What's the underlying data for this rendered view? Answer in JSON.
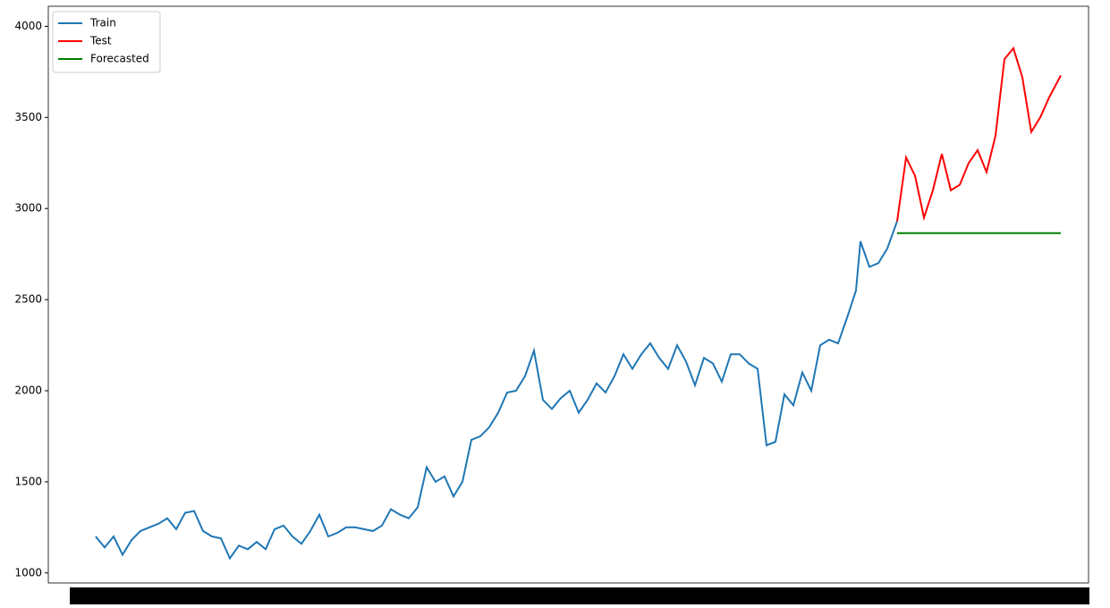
{
  "chart_data": {
    "type": "line",
    "series": [
      {
        "name": "Train",
        "color": "#1f77b4",
        "x": [
          0,
          10,
          20,
          30,
          40,
          50,
          60,
          70,
          80,
          90,
          100,
          110,
          120,
          130,
          140,
          150,
          160,
          170,
          180,
          190,
          200,
          210,
          220,
          230,
          240,
          250,
          260,
          270,
          280,
          290,
          300,
          310,
          320,
          330,
          340,
          350,
          360,
          370,
          380,
          390,
          400,
          410,
          420,
          430,
          440,
          450,
          460,
          470,
          480,
          490,
          500,
          510,
          520,
          530,
          540,
          550,
          560,
          570,
          580,
          590,
          600,
          610,
          620,
          630,
          640,
          650,
          660,
          670,
          680,
          690,
          700,
          710,
          720,
          730,
          740,
          750,
          760,
          770,
          780,
          790,
          800,
          810,
          820,
          830,
          840,
          850,
          855,
          865,
          875,
          885,
          896
        ],
        "values": [
          1200,
          1140,
          1200,
          1100,
          1180,
          1230,
          1250,
          1270,
          1300,
          1240,
          1330,
          1340,
          1230,
          1200,
          1190,
          1080,
          1150,
          1130,
          1170,
          1130,
          1240,
          1260,
          1200,
          1160,
          1230,
          1320,
          1200,
          1220,
          1250,
          1250,
          1240,
          1230,
          1260,
          1350,
          1320,
          1300,
          1360,
          1580,
          1500,
          1530,
          1420,
          1500,
          1730,
          1750,
          1800,
          1880,
          1990,
          2000,
          2080,
          2220,
          1950,
          1900,
          1960,
          2000,
          1880,
          1950,
          2040,
          1990,
          2080,
          2200,
          2120,
          2200,
          2260,
          2180,
          2120,
          2250,
          2160,
          2030,
          2180,
          2150,
          2050,
          2200,
          2200,
          2150,
          2120,
          1700,
          1720,
          1980,
          1920,
          2100,
          2000,
          2250,
          2280,
          2260,
          2400,
          2550,
          2820,
          2680,
          2700,
          2780,
          2930
        ]
      },
      {
        "name": "Test",
        "color": "#ff0000",
        "x": [
          896,
          906,
          916,
          926,
          936,
          946,
          956,
          966,
          976,
          986,
          996,
          1006,
          1016,
          1026,
          1036,
          1046,
          1056,
          1066,
          1079
        ],
        "values": [
          2930,
          3280,
          3180,
          2950,
          3100,
          3300,
          3100,
          3130,
          3250,
          3320,
          3200,
          3400,
          3820,
          3880,
          3720,
          3420,
          3500,
          3610,
          3730
        ]
      },
      {
        "name": "Forecasted",
        "color": "#008000",
        "x": [
          896,
          1079
        ],
        "values": [
          2865,
          2865
        ]
      }
    ],
    "xlim": [
      -53,
      1110
    ],
    "ylim": [
      945,
      4110
    ],
    "yticks": [
      1000,
      1500,
      2000,
      2500,
      3000,
      3500,
      4000
    ],
    "legend": "upper left"
  }
}
